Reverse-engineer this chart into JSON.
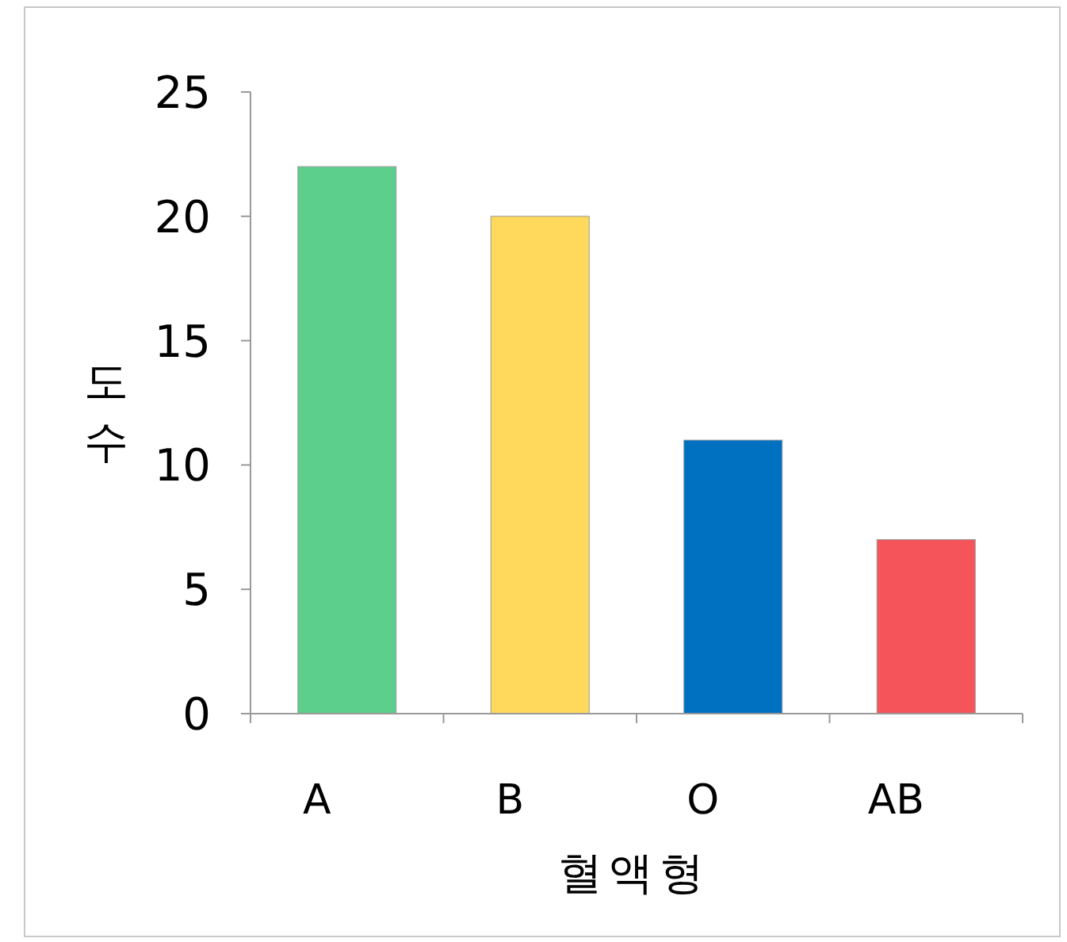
{
  "chart_data": {
    "type": "bar",
    "xlabel": "혈액형",
    "ylabel": "도수",
    "categories": [
      "A",
      "B",
      "O",
      "AB"
    ],
    "values": [
      22,
      20,
      11,
      7
    ],
    "colors": [
      "#5dcf8c",
      "#ffd95c",
      "#0070c0",
      "#f5555a"
    ],
    "ylim": [
      0,
      25
    ],
    "yticks": [
      0,
      5,
      10,
      15,
      20,
      25
    ],
    "grid": false,
    "legend": false
  }
}
